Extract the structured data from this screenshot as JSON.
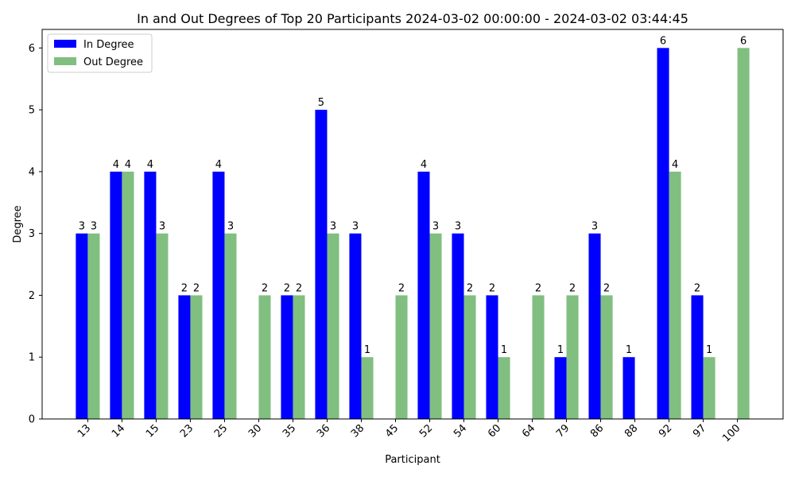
{
  "chart_data": {
    "type": "bar",
    "title": "In and Out Degrees of Top 20 Participants 2024-03-02 00:00:00 - 2024-03-02 03:44:45",
    "xlabel": "Participant",
    "ylabel": "Degree",
    "categories": [
      "13",
      "14",
      "15",
      "23",
      "25",
      "30",
      "35",
      "36",
      "38",
      "45",
      "52",
      "54",
      "60",
      "64",
      "79",
      "86",
      "88",
      "92",
      "97",
      "100"
    ],
    "series": [
      {
        "name": "In Degree",
        "color": "#0000ff",
        "values": [
          3,
          4,
          4,
          2,
          4,
          0,
          2,
          5,
          3,
          0,
          4,
          3,
          2,
          0,
          1,
          3,
          1,
          6,
          2,
          0
        ]
      },
      {
        "name": "Out Degree",
        "color": "#80bf80",
        "values": [
          3,
          4,
          3,
          2,
          3,
          2,
          2,
          3,
          1,
          2,
          3,
          2,
          1,
          2,
          2,
          2,
          0,
          4,
          1,
          6
        ]
      }
    ],
    "ylim": [
      0,
      6.3
    ],
    "yticks": [
      0,
      1,
      2,
      3,
      4,
      5,
      6
    ],
    "grid": false,
    "legend": "top-left",
    "xtick_rotation": "45-degree"
  }
}
